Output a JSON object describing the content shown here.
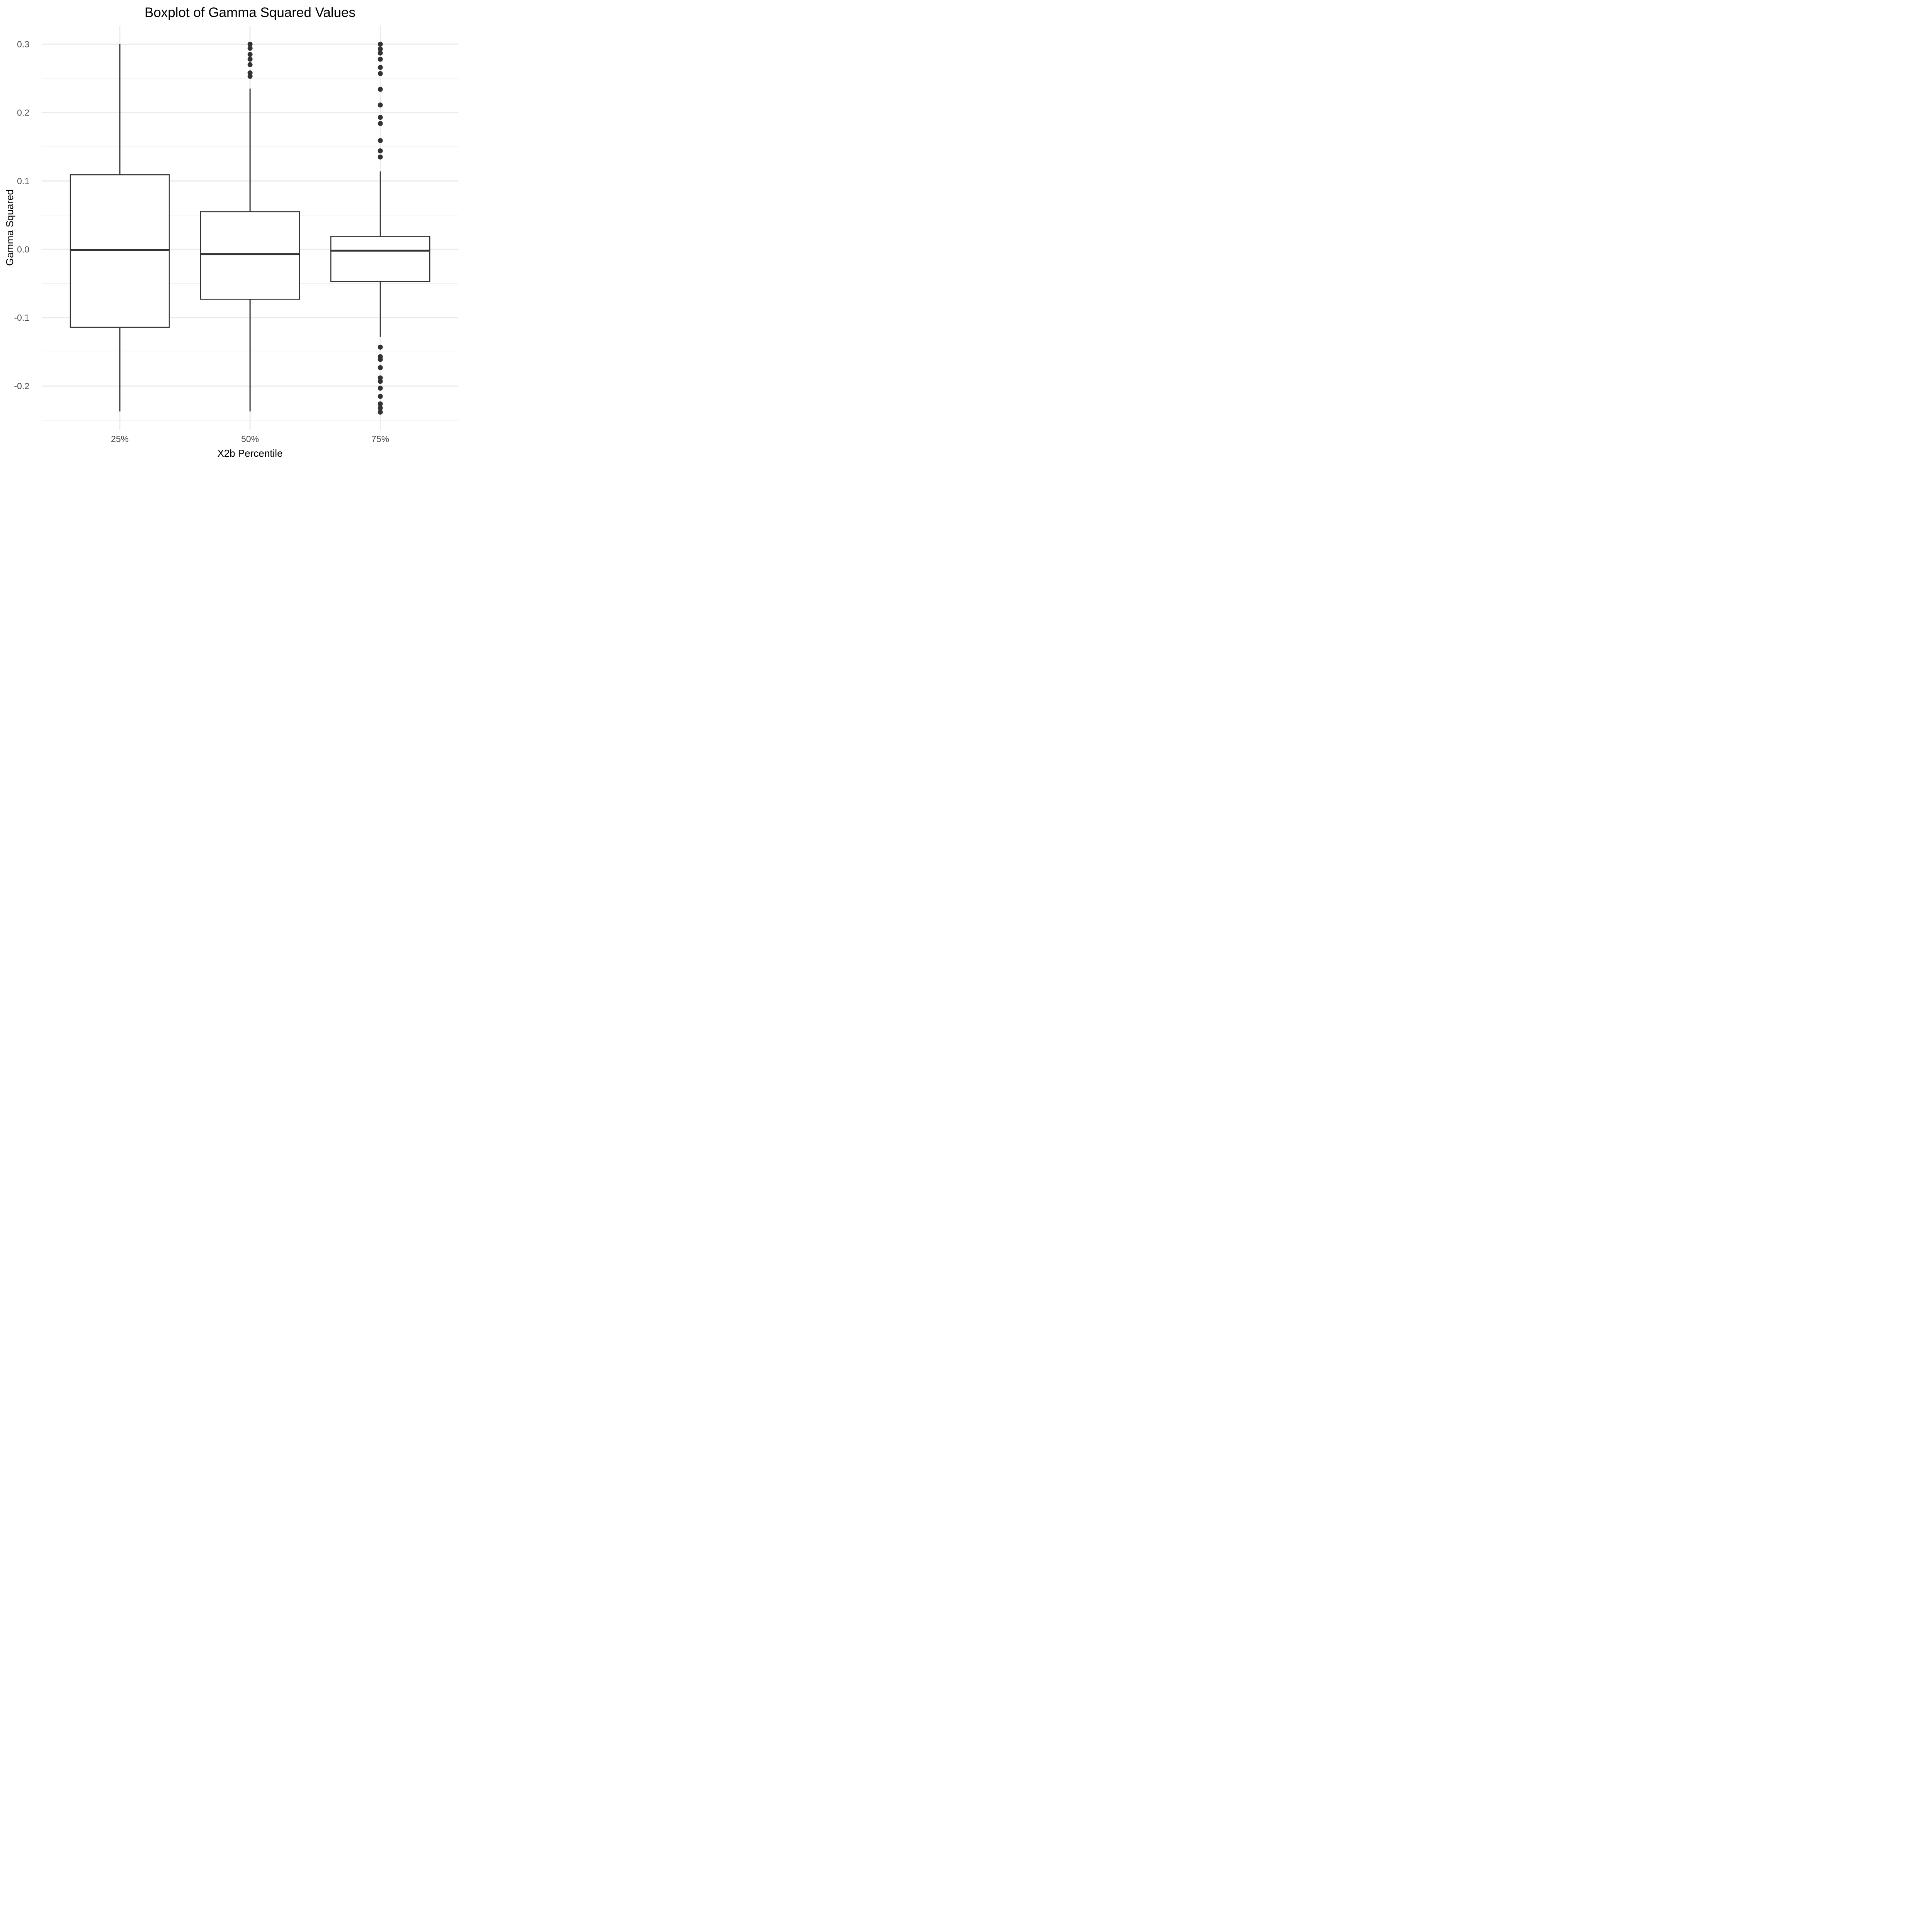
{
  "title": "Boxplot of Gamma Squared Values",
  "chart_data": {
    "type": "boxplot",
    "title": "Boxplot of Gamma Squared Values",
    "xlabel": "X2b Percentile",
    "ylabel": "Gamma Squared",
    "categories": [
      "25%",
      "50%",
      "75%"
    ],
    "y_axis": {
      "ylim": [
        -0.264,
        0.327
      ],
      "major_ticks": [
        0.3,
        0.2,
        0.1,
        0.0,
        -0.1,
        -0.2
      ],
      "tick_labels": [
        "0.3",
        "0.2",
        "0.1",
        "0.0",
        "-0.1",
        "-0.2"
      ],
      "minor_ticks": [
        0.25,
        0.15,
        0.05,
        -0.05,
        -0.15,
        -0.25
      ]
    },
    "grid": "horizontal major+minor, vertical major at categories, no axis lines or tick marks",
    "legend": "none",
    "series": [
      {
        "category": "25%",
        "whisker_low": -0.237,
        "q1": -0.114,
        "median": -0.001,
        "q3": 0.109,
        "whisker_high": 0.3,
        "outliers": []
      },
      {
        "category": "50%",
        "whisker_low": -0.237,
        "q1": -0.073,
        "median": -0.007,
        "q3": 0.055,
        "whisker_high": 0.235,
        "outliers": [
          0.3,
          0.294,
          0.285,
          0.278,
          0.27,
          0.258,
          0.253
        ]
      },
      {
        "category": "75%",
        "whisker_low": -0.128,
        "q1": -0.047,
        "median": -0.002,
        "q3": 0.019,
        "whisker_high": 0.114,
        "outliers": [
          0.3,
          0.293,
          0.287,
          0.278,
          0.266,
          0.257,
          0.234,
          0.211,
          0.193,
          0.184,
          0.159,
          0.144,
          0.135,
          -0.143,
          -0.157,
          -0.161,
          -0.173,
          -0.188,
          -0.193,
          -0.203,
          -0.215,
          -0.226,
          -0.232,
          -0.238
        ]
      }
    ],
    "colors": {
      "box_fill": "#ffffff",
      "box_stroke": "#333333",
      "median_stroke": "#333333",
      "whisker_stroke": "#333333",
      "outlier_fill": "#333333",
      "grid_major": "#ebebeb",
      "grid_minor": "#f1f1f1",
      "tick_text": "#4d4d4d",
      "title_text": "#000000",
      "background": "#ffffff"
    }
  }
}
